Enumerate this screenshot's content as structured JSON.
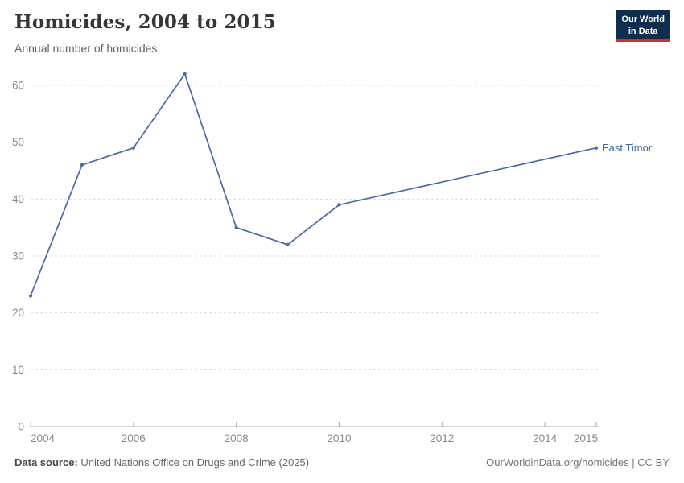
{
  "header": {
    "title": "Homicides, 2004 to 2015",
    "subtitle": "Annual number of homicides.",
    "logo": {
      "line1": "Our World",
      "line2": "in Data",
      "bg_color": "#0f2d4f",
      "bar_color": "#d0312d"
    }
  },
  "chart_data": {
    "type": "line",
    "title": "Homicides, 2004 to 2015",
    "xlabel": "",
    "ylabel": "",
    "xlim": [
      2004,
      2015
    ],
    "ylim": [
      0,
      60
    ],
    "grid": true,
    "legend_position": "end-of-line",
    "x_ticks": [
      2004,
      2006,
      2008,
      2010,
      2012,
      2014,
      2015
    ],
    "y_ticks": [
      0,
      10,
      20,
      30,
      40,
      50,
      60
    ],
    "series": [
      {
        "name": "East Timor",
        "color": "#4a69a2",
        "label_color": "#3d64a5",
        "x": [
          2004,
          2005,
          2006,
          2007,
          2008,
          2009,
          2010,
          2015
        ],
        "values": [
          23,
          46,
          49,
          62,
          35,
          32,
          39,
          49
        ]
      }
    ]
  },
  "footer": {
    "source_label": "Data source:",
    "source_text": "United Nations Office on Drugs and Crime (2025)",
    "credit_text": "OurWorldinData.org/homicides | CC BY"
  }
}
